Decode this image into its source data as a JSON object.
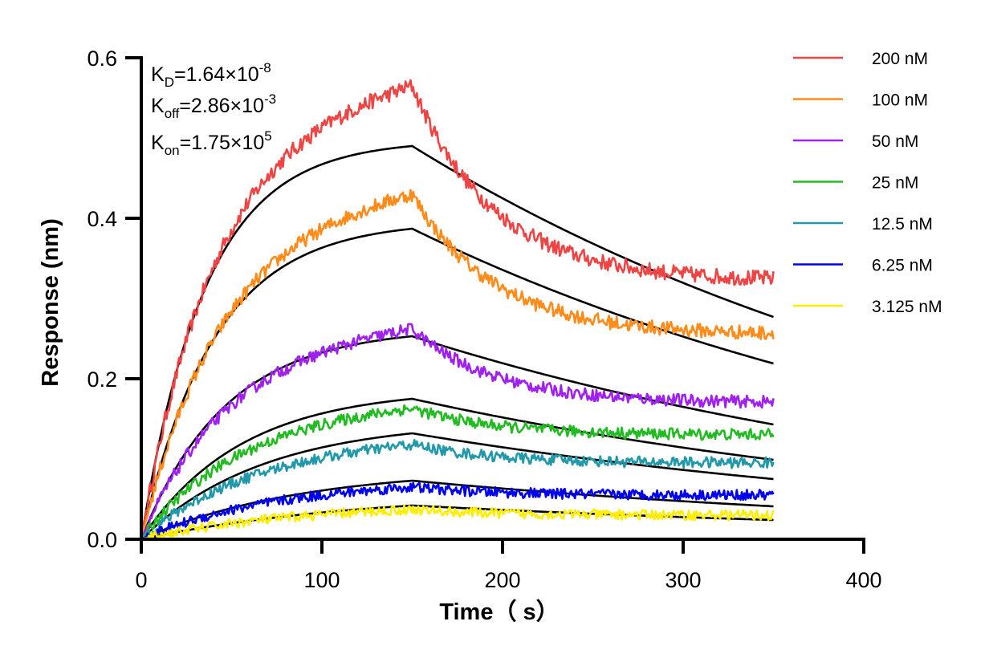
{
  "chart_data": {
    "type": "line",
    "xlabel": "Time（ s）",
    "ylabel": "Response (nm)",
    "xlim": [
      0,
      400
    ],
    "ylim": [
      0,
      0.6
    ],
    "x_ticks": [
      "0",
      "100",
      "200",
      "300",
      "400"
    ],
    "y_ticks": [
      "0.0",
      "0.2",
      "0.4",
      "0.6"
    ],
    "grid": false,
    "legend_position": "top-right",
    "association_end_s": 150,
    "end_time_s": 350,
    "constants": [
      {
        "symbol": "K",
        "sub": "D",
        "value": "=1.64×10",
        "exp": "-8"
      },
      {
        "symbol": "K",
        "sub": "off",
        "value": "=2.86×10",
        "exp": "-3"
      },
      {
        "symbol": "K",
        "sub": "on",
        "value": "=1.75×10",
        "exp": "5"
      }
    ],
    "series": [
      {
        "name": "200 nM",
        "color": "#ee4444",
        "peak": 0.565,
        "end": 0.322,
        "fit_peak": 0.49,
        "fit_end": 0.277,
        "points": [
          [
            0,
            0
          ],
          [
            10,
            0.13
          ],
          [
            20,
            0.22
          ],
          [
            30,
            0.3
          ],
          [
            50,
            0.38
          ],
          [
            80,
            0.45
          ],
          [
            100,
            0.48
          ],
          [
            120,
            0.52
          ],
          [
            140,
            0.555
          ],
          [
            150,
            0.565
          ],
          [
            160,
            0.49
          ],
          [
            180,
            0.43
          ],
          [
            200,
            0.395
          ],
          [
            230,
            0.355
          ],
          [
            260,
            0.34
          ],
          [
            300,
            0.33
          ],
          [
            350,
            0.322
          ]
        ],
        "fit": [
          [
            0,
            0
          ],
          [
            10,
            0.175
          ],
          [
            25,
            0.31
          ],
          [
            50,
            0.41
          ],
          [
            75,
            0.455
          ],
          [
            100,
            0.478
          ],
          [
            125,
            0.487
          ],
          [
            150,
            0.49
          ],
          [
            200,
            0.425
          ],
          [
            250,
            0.365
          ],
          [
            300,
            0.315
          ],
          [
            350,
            0.277
          ]
        ]
      },
      {
        "name": "100 nM",
        "color": "#ff8c1a",
        "peak": 0.43,
        "end": 0.255,
        "fit_peak": 0.387,
        "fit_end": 0.219,
        "points": [
          [
            0,
            0
          ],
          [
            10,
            0.09
          ],
          [
            20,
            0.16
          ],
          [
            30,
            0.22
          ],
          [
            50,
            0.28
          ],
          [
            80,
            0.34
          ],
          [
            100,
            0.36
          ],
          [
            120,
            0.39
          ],
          [
            140,
            0.42
          ],
          [
            150,
            0.43
          ],
          [
            160,
            0.37
          ],
          [
            180,
            0.33
          ],
          [
            200,
            0.3
          ],
          [
            230,
            0.275
          ],
          [
            260,
            0.265
          ],
          [
            300,
            0.26
          ],
          [
            350,
            0.255
          ]
        ],
        "fit": [
          [
            0,
            0
          ],
          [
            10,
            0.1
          ],
          [
            25,
            0.19
          ],
          [
            50,
            0.28
          ],
          [
            75,
            0.33
          ],
          [
            100,
            0.36
          ],
          [
            125,
            0.378
          ],
          [
            150,
            0.387
          ],
          [
            200,
            0.335
          ],
          [
            250,
            0.29
          ],
          [
            300,
            0.252
          ],
          [
            350,
            0.219
          ]
        ]
      },
      {
        "name": "50 nM",
        "color": "#a020f0",
        "peak": 0.262,
        "end": 0.17,
        "fit_peak": 0.253,
        "fit_end": 0.143,
        "points": [
          [
            0,
            0
          ],
          [
            10,
            0.04
          ],
          [
            25,
            0.09
          ],
          [
            50,
            0.15
          ],
          [
            80,
            0.2
          ],
          [
            100,
            0.22
          ],
          [
            120,
            0.24
          ],
          [
            140,
            0.258
          ],
          [
            150,
            0.262
          ],
          [
            170,
            0.228
          ],
          [
            200,
            0.2
          ],
          [
            230,
            0.182
          ],
          [
            260,
            0.175
          ],
          [
            300,
            0.172
          ],
          [
            350,
            0.17
          ]
        ],
        "fit": [
          [
            0,
            0
          ],
          [
            10,
            0.035
          ],
          [
            25,
            0.085
          ],
          [
            50,
            0.145
          ],
          [
            75,
            0.19
          ],
          [
            100,
            0.22
          ],
          [
            125,
            0.24
          ],
          [
            150,
            0.253
          ],
          [
            200,
            0.219
          ],
          [
            250,
            0.19
          ],
          [
            300,
            0.165
          ],
          [
            350,
            0.143
          ]
        ]
      },
      {
        "name": "25 nM",
        "color": "#22bb22",
        "peak": 0.163,
        "end": 0.13,
        "fit_peak": 0.175,
        "fit_end": 0.099,
        "points": [
          [
            0,
            0
          ],
          [
            10,
            0.03
          ],
          [
            25,
            0.06
          ],
          [
            50,
            0.09
          ],
          [
            80,
            0.12
          ],
          [
            100,
            0.135
          ],
          [
            120,
            0.15
          ],
          [
            150,
            0.163
          ],
          [
            180,
            0.148
          ],
          [
            200,
            0.14
          ],
          [
            250,
            0.133
          ],
          [
            300,
            0.131
          ],
          [
            350,
            0.13
          ]
        ],
        "fit": [
          [
            0,
            0
          ],
          [
            10,
            0.02
          ],
          [
            25,
            0.048
          ],
          [
            50,
            0.09
          ],
          [
            75,
            0.122
          ],
          [
            100,
            0.146
          ],
          [
            125,
            0.163
          ],
          [
            150,
            0.175
          ],
          [
            200,
            0.152
          ],
          [
            250,
            0.132
          ],
          [
            300,
            0.114
          ],
          [
            350,
            0.099
          ]
        ]
      },
      {
        "name": "12.5 nM",
        "color": "#2299aa",
        "peak": 0.118,
        "end": 0.095,
        "fit_peak": 0.132,
        "fit_end": 0.075,
        "points": [
          [
            0,
            0
          ],
          [
            10,
            0.02
          ],
          [
            25,
            0.045
          ],
          [
            50,
            0.07
          ],
          [
            80,
            0.09
          ],
          [
            100,
            0.1
          ],
          [
            120,
            0.11
          ],
          [
            150,
            0.118
          ],
          [
            180,
            0.11
          ],
          [
            200,
            0.106
          ],
          [
            250,
            0.1
          ],
          [
            300,
            0.097
          ],
          [
            350,
            0.095
          ]
        ],
        "fit": [
          [
            0,
            0
          ],
          [
            10,
            0.014
          ],
          [
            25,
            0.035
          ],
          [
            50,
            0.066
          ],
          [
            75,
            0.092
          ],
          [
            100,
            0.11
          ],
          [
            125,
            0.123
          ],
          [
            150,
            0.132
          ],
          [
            200,
            0.115
          ],
          [
            250,
            0.1
          ],
          [
            300,
            0.086
          ],
          [
            350,
            0.075
          ]
        ]
      },
      {
        "name": "6.25 nM",
        "color": "#0000ee",
        "peak": 0.065,
        "end": 0.055,
        "fit_peak": 0.073,
        "fit_end": 0.041,
        "points": [
          [
            0,
            0
          ],
          [
            10,
            0.015
          ],
          [
            25,
            0.025
          ],
          [
            50,
            0.038
          ],
          [
            80,
            0.048
          ],
          [
            100,
            0.055
          ],
          [
            120,
            0.06
          ],
          [
            150,
            0.065
          ],
          [
            180,
            0.062
          ],
          [
            200,
            0.06
          ],
          [
            250,
            0.058
          ],
          [
            300,
            0.056
          ],
          [
            350,
            0.055
          ]
        ],
        "fit": [
          [
            0,
            0
          ],
          [
            10,
            0.007
          ],
          [
            25,
            0.018
          ],
          [
            50,
            0.035
          ],
          [
            75,
            0.049
          ],
          [
            100,
            0.06
          ],
          [
            125,
            0.068
          ],
          [
            150,
            0.073
          ],
          [
            200,
            0.064
          ],
          [
            250,
            0.055
          ],
          [
            300,
            0.048
          ],
          [
            350,
            0.041
          ]
        ]
      },
      {
        "name": "3.125 nM",
        "color": "#ffee00",
        "peak": 0.037,
        "end": 0.03,
        "fit_peak": 0.042,
        "fit_end": 0.024,
        "points": [
          [
            0,
            0
          ],
          [
            10,
            0.006
          ],
          [
            25,
            0.012
          ],
          [
            50,
            0.02
          ],
          [
            80,
            0.028
          ],
          [
            100,
            0.032
          ],
          [
            120,
            0.035
          ],
          [
            150,
            0.037
          ],
          [
            180,
            0.035
          ],
          [
            200,
            0.034
          ],
          [
            250,
            0.033
          ],
          [
            300,
            0.031
          ],
          [
            350,
            0.03
          ]
        ],
        "fit": [
          [
            0,
            0
          ],
          [
            10,
            0.004
          ],
          [
            25,
            0.01
          ],
          [
            50,
            0.02
          ],
          [
            75,
            0.028
          ],
          [
            100,
            0.034
          ],
          [
            125,
            0.039
          ],
          [
            150,
            0.042
          ],
          [
            200,
            0.036
          ],
          [
            250,
            0.032
          ],
          [
            300,
            0.027
          ],
          [
            350,
            0.024
          ]
        ]
      }
    ]
  }
}
